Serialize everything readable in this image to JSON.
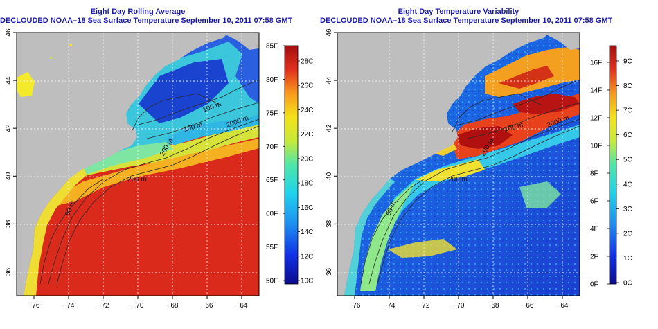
{
  "colors": {
    "land": "#bebebe",
    "title": "#1a1aa8",
    "contour": "#2a2a2a",
    "grid": "#ffffff"
  },
  "map_extent": {
    "lon": [
      -77,
      -63
    ],
    "lat": [
      35,
      46
    ]
  },
  "lon_ticks": [
    "-76",
    "-74",
    "-72",
    "-70",
    "-68",
    "-66",
    "-64"
  ],
  "lat_ticks": [
    "36",
    "38",
    "40",
    "42",
    "44",
    "46"
  ],
  "contour_labels": [
    "50 m",
    "200 m",
    "100 m",
    "100 m",
    "200 m",
    "2000 m"
  ],
  "panels": [
    {
      "title": "Eight Day Rolling Average",
      "subtitle": "DECLOUDED NOAA–18 Sea Surface Temperature September 10, 2011 07:58 GMT",
      "colorbar_left_labels": [
        "50F",
        "55F",
        "60F",
        "65F",
        "70F",
        "75F",
        "80F",
        "85F"
      ],
      "colorbar_right_labels": [
        "10C",
        "12C",
        "14C",
        "16C",
        "18C",
        "20C",
        "22C",
        "24C",
        "26C",
        "28C"
      ]
    },
    {
      "title": "Eight Day Temperature Variability",
      "subtitle": "DECLOUDED NOAA–18 Sea Surface Temperature September 10, 2011 07:58 GMT",
      "colorbar_left_labels": [
        "0F",
        "2F",
        "4F",
        "6F",
        "8F",
        "10F",
        "12F",
        "14F",
        "16F"
      ],
      "colorbar_right_labels": [
        "0C",
        "1C",
        "2C",
        "3C",
        "4C",
        "5C",
        "6C",
        "7C",
        "8C",
        "9C"
      ]
    }
  ]
}
